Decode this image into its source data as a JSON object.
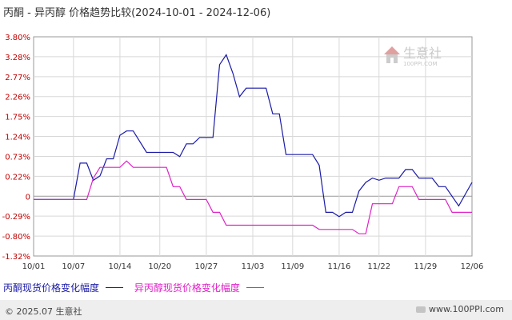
{
  "title": "丙酮 - 异丙醇 价格趋势比较(2024-10-01 - 2024-12-06)",
  "watermark": {
    "name": "生意社",
    "url": "100PPI.COM"
  },
  "footer": {
    "copyright": "© 2025.07 生意社",
    "site": "www.100PPI.com"
  },
  "colors": {
    "series1": "#1a1aa8",
    "series2": "#e020c8",
    "axis_label": "#c00000",
    "grid": "#d8d8d8"
  },
  "chart_data": {
    "type": "line",
    "title": "丙酮 - 异丙醇 价格趋势比较(2024-10-01 - 2024-12-06)",
    "x_start": "2024-10-01",
    "xticks": [
      "10/01",
      "10/07",
      "10/14",
      "10/20",
      "10/27",
      "11/03",
      "11/09",
      "11/16",
      "11/22",
      "11/29",
      "12/06"
    ],
    "yticks": [
      "3.80%",
      "3.28%",
      "2.77%",
      "2.26%",
      "1.75%",
      "1.24%",
      "0.73%",
      "0.22%",
      "0",
      "-0.29%",
      "-0.80%",
      "-1.32%"
    ],
    "ylim": [
      -1.32,
      3.8
    ],
    "grid": true,
    "legend": "bottom",
    "series": [
      {
        "name": "丙酮现货价格变化幅度",
        "points": [
          [
            "2024-10-01",
            0
          ],
          [
            "2024-10-07",
            0
          ],
          [
            "2024-10-08",
            0.85
          ],
          [
            "2024-10-09",
            0.85
          ],
          [
            "2024-10-10",
            0.45
          ],
          [
            "2024-10-11",
            0.55
          ],
          [
            "2024-10-12",
            0.95
          ],
          [
            "2024-10-13",
            0.95
          ],
          [
            "2024-10-14",
            1.5
          ],
          [
            "2024-10-15",
            1.6
          ],
          [
            "2024-10-16",
            1.6
          ],
          [
            "2024-10-18",
            1.1
          ],
          [
            "2024-10-22",
            1.1
          ],
          [
            "2024-10-23",
            1.0
          ],
          [
            "2024-10-24",
            1.3
          ],
          [
            "2024-10-25",
            1.3
          ],
          [
            "2024-10-26",
            1.45
          ],
          [
            "2024-10-28",
            1.45
          ],
          [
            "2024-10-29",
            3.15
          ],
          [
            "2024-10-30",
            3.38
          ],
          [
            "2024-10-31",
            2.95
          ],
          [
            "2024-11-01",
            2.4
          ],
          [
            "2024-11-02",
            2.6
          ],
          [
            "2024-11-05",
            2.6
          ],
          [
            "2024-11-06",
            2.0
          ],
          [
            "2024-11-07",
            2.0
          ],
          [
            "2024-11-08",
            1.05
          ],
          [
            "2024-11-12",
            1.05
          ],
          [
            "2024-11-13",
            0.8
          ],
          [
            "2024-11-14",
            -0.3
          ],
          [
            "2024-11-15",
            -0.3
          ],
          [
            "2024-11-16",
            -0.4
          ],
          [
            "2024-11-17",
            -0.3
          ],
          [
            "2024-11-18",
            -0.3
          ],
          [
            "2024-11-19",
            0.2
          ],
          [
            "2024-11-20",
            0.4
          ],
          [
            "2024-11-21",
            0.5
          ],
          [
            "2024-11-22",
            0.45
          ],
          [
            "2024-11-23",
            0.5
          ],
          [
            "2024-11-25",
            0.5
          ],
          [
            "2024-11-26",
            0.7
          ],
          [
            "2024-11-27",
            0.7
          ],
          [
            "2024-11-28",
            0.5
          ],
          [
            "2024-11-30",
            0.5
          ],
          [
            "2024-12-01",
            0.3
          ],
          [
            "2024-12-02",
            0.3
          ],
          [
            "2024-12-04",
            -0.15
          ],
          [
            "2024-12-06",
            0.4
          ],
          [
            "2024-12-07",
            0.4
          ]
        ]
      },
      {
        "name": "异丙醇现货价格变化幅度",
        "points": [
          [
            "2024-10-01",
            0
          ],
          [
            "2024-10-09",
            0
          ],
          [
            "2024-10-10",
            0.5
          ],
          [
            "2024-10-11",
            0.75
          ],
          [
            "2024-10-14",
            0.75
          ],
          [
            "2024-10-15",
            0.9
          ],
          [
            "2024-10-16",
            0.75
          ],
          [
            "2024-10-21",
            0.75
          ],
          [
            "2024-10-22",
            0.3
          ],
          [
            "2024-10-23",
            0.3
          ],
          [
            "2024-10-24",
            0
          ],
          [
            "2024-10-27",
            0
          ],
          [
            "2024-10-28",
            -0.3
          ],
          [
            "2024-10-29",
            -0.3
          ],
          [
            "2024-10-30",
            -0.6
          ],
          [
            "2024-11-12",
            -0.6
          ],
          [
            "2024-11-13",
            -0.7
          ],
          [
            "2024-11-18",
            -0.7
          ],
          [
            "2024-11-19",
            -0.8
          ],
          [
            "2024-11-20",
            -0.8
          ],
          [
            "2024-11-21",
            -0.1
          ],
          [
            "2024-11-24",
            -0.1
          ],
          [
            "2024-11-25",
            0.3
          ],
          [
            "2024-11-27",
            0.3
          ],
          [
            "2024-11-28",
            0
          ],
          [
            "2024-12-02",
            0
          ],
          [
            "2024-12-03",
            -0.3
          ],
          [
            "2024-12-07",
            -0.3
          ]
        ]
      }
    ]
  }
}
